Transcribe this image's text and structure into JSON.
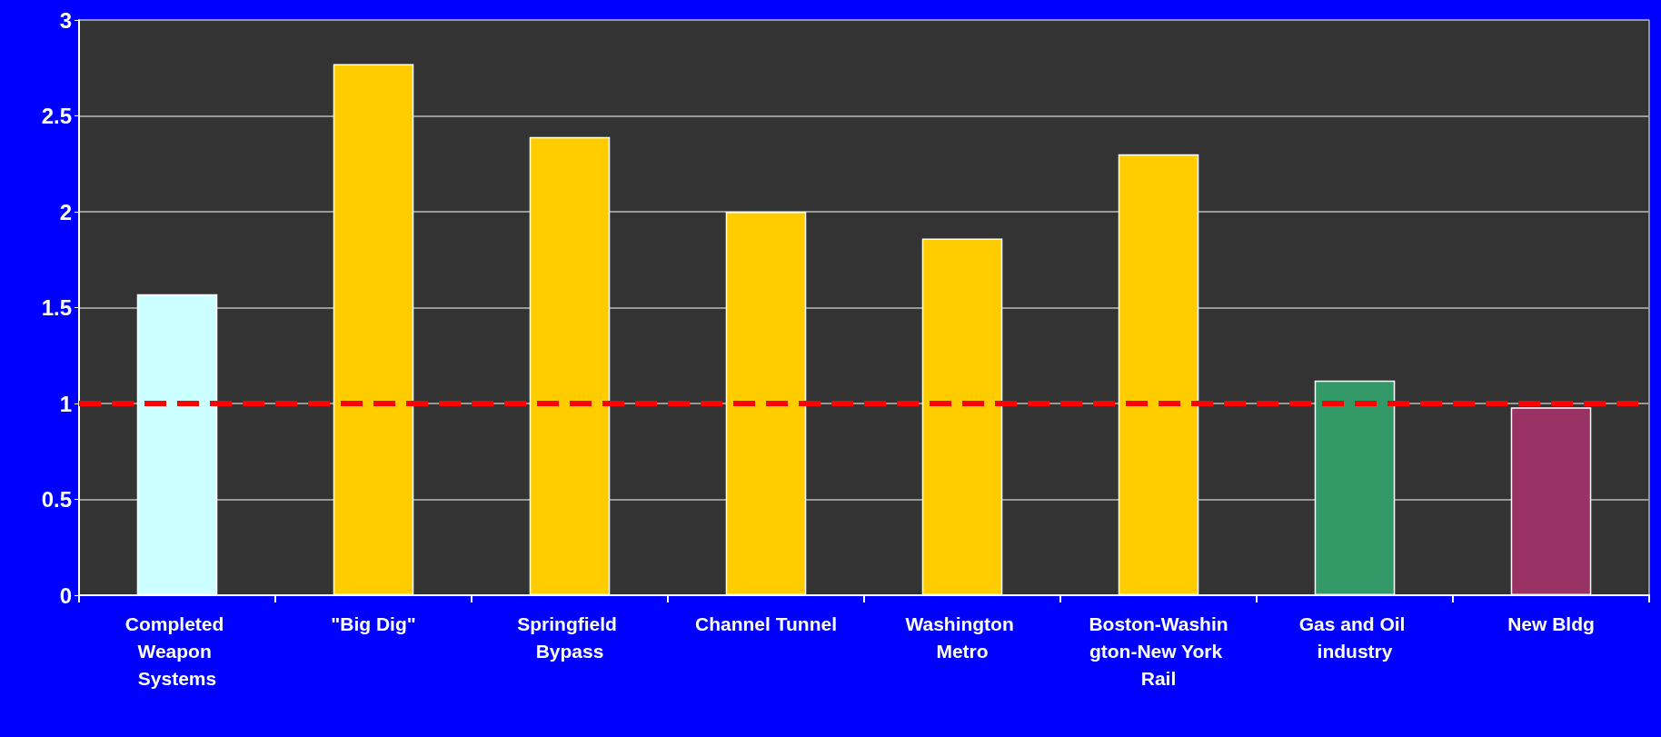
{
  "chart_data": {
    "type": "bar",
    "categories": [
      "Completed Weapon Systems",
      "\"Big Dig\"",
      "Springfield Bypass",
      "Channel Tunnel",
      "Washington Metro",
      "Boston-Washington-New York Rail",
      "Gas and Oil industry",
      "New Bldg"
    ],
    "values": [
      1.57,
      2.77,
      2.39,
      2.0,
      1.86,
      2.3,
      1.12,
      0.98
    ],
    "colors": [
      "#ccffff",
      "#ffcc00",
      "#ffcc00",
      "#ffcc00",
      "#ffcc00",
      "#ffcc00",
      "#339966",
      "#993366"
    ],
    "ylim": [
      0,
      3
    ],
    "yticks": [
      0,
      0.5,
      1,
      1.5,
      2,
      2.5,
      3
    ],
    "grid": "y",
    "ref_lines": [
      {
        "axis": "y",
        "value": 1,
        "color": "#ff0000",
        "line_style": "dashed"
      }
    ]
  }
}
